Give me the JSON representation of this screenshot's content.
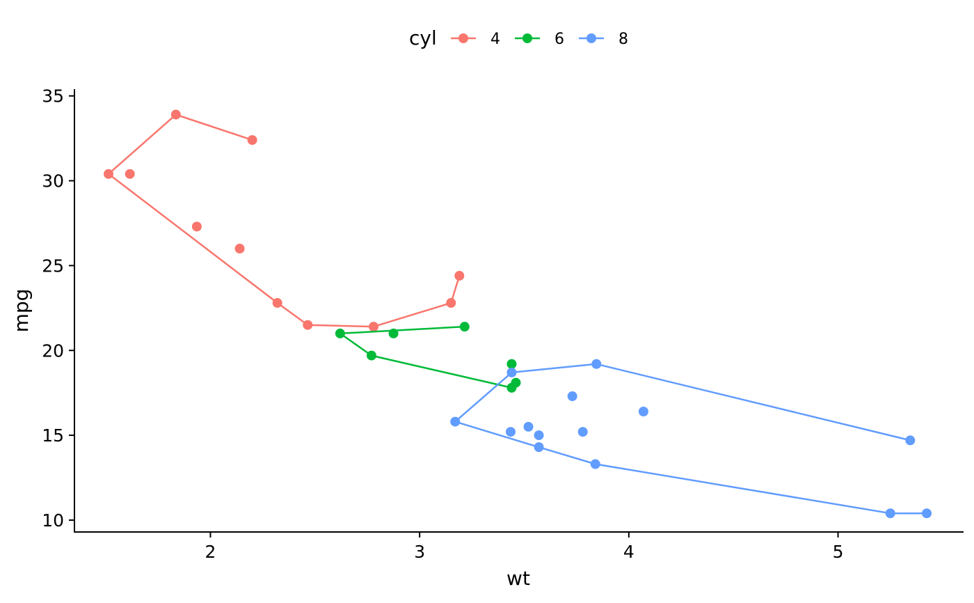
{
  "chart_data": {
    "type": "line",
    "xlabel": "wt",
    "ylabel": "mpg",
    "xlim": [
      1.35,
      5.6
    ],
    "ylim": [
      9.3,
      35.4
    ],
    "x_ticks": [
      2,
      3,
      4,
      5
    ],
    "y_ticks": [
      10,
      15,
      20,
      25,
      30,
      35
    ],
    "grid": false,
    "legend": {
      "title": "cyl",
      "position": "top"
    },
    "series": [
      {
        "name": "4",
        "color": "#F8766D",
        "points": [
          {
            "x": 2.2,
            "y": 32.4
          },
          {
            "x": 1.835,
            "y": 33.9
          },
          {
            "x": 1.513,
            "y": 30.4
          },
          {
            "x": 2.32,
            "y": 22.8
          },
          {
            "x": 2.465,
            "y": 21.5
          },
          {
            "x": 2.78,
            "y": 21.4
          },
          {
            "x": 3.15,
            "y": 22.8
          },
          {
            "x": 3.19,
            "y": 24.4
          }
        ],
        "unconnected_points": [
          {
            "x": 1.615,
            "y": 30.4
          },
          {
            "x": 1.935,
            "y": 27.3
          },
          {
            "x": 2.14,
            "y": 26.0
          }
        ]
      },
      {
        "name": "6",
        "color": "#00BA38",
        "points": [
          {
            "x": 3.215,
            "y": 21.4
          },
          {
            "x": 2.62,
            "y": 21.0
          },
          {
            "x": 2.77,
            "y": 19.7
          },
          {
            "x": 3.44,
            "y": 17.8
          },
          {
            "x": 3.46,
            "y": 18.1
          }
        ],
        "unconnected_points": [
          {
            "x": 2.875,
            "y": 21.0
          },
          {
            "x": 3.44,
            "y": 19.2
          }
        ]
      },
      {
        "name": "8",
        "color": "#619CFF",
        "points": [
          {
            "x": 5.345,
            "y": 14.7
          },
          {
            "x": 3.845,
            "y": 19.2
          },
          {
            "x": 3.44,
            "y": 18.7
          },
          {
            "x": 3.17,
            "y": 15.8
          },
          {
            "x": 3.57,
            "y": 14.3
          },
          {
            "x": 3.84,
            "y": 13.3
          },
          {
            "x": 5.25,
            "y": 10.4
          },
          {
            "x": 5.424,
            "y": 10.4
          }
        ],
        "unconnected_points": [
          {
            "x": 3.73,
            "y": 17.3
          },
          {
            "x": 4.07,
            "y": 16.4
          },
          {
            "x": 3.52,
            "y": 15.5
          },
          {
            "x": 3.435,
            "y": 15.2
          },
          {
            "x": 3.78,
            "y": 15.2
          },
          {
            "x": 3.57,
            "y": 15.0
          }
        ]
      }
    ]
  }
}
